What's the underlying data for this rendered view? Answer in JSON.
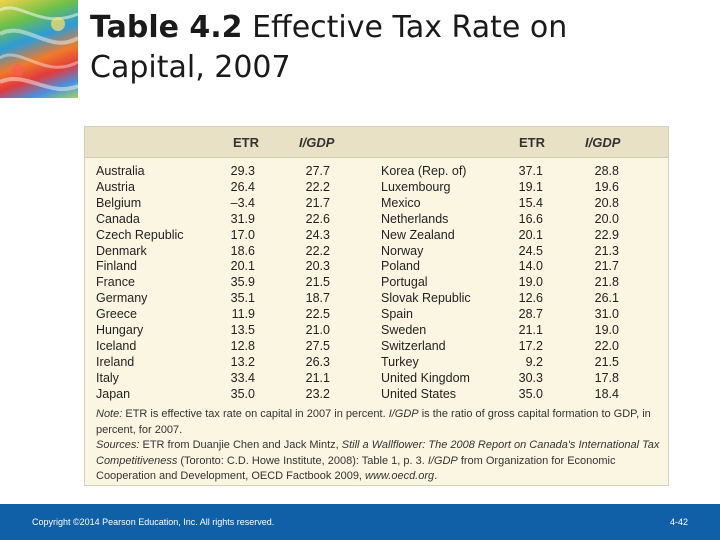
{
  "slide": {
    "title_bold": "Table 4.2",
    "title_rest": " Effective Tax Rate on Capital, 2007"
  },
  "table": {
    "headers": {
      "etr": "ETR",
      "igdp": "I/GDP"
    },
    "left_rows": [
      {
        "country": "Australia",
        "etr": "29.3",
        "igdp": "27.7"
      },
      {
        "country": "Austria",
        "etr": "26.4",
        "igdp": "22.2"
      },
      {
        "country": "Belgium",
        "etr": "–3.4",
        "igdp": "21.7"
      },
      {
        "country": "Canada",
        "etr": "31.9",
        "igdp": "22.6"
      },
      {
        "country": "Czech Republic",
        "etr": "17.0",
        "igdp": "24.3"
      },
      {
        "country": "Denmark",
        "etr": "18.6",
        "igdp": "22.2"
      },
      {
        "country": "Finland",
        "etr": "20.1",
        "igdp": "20.3"
      },
      {
        "country": "France",
        "etr": "35.9",
        "igdp": "21.5"
      },
      {
        "country": "Germany",
        "etr": "35.1",
        "igdp": "18.7"
      },
      {
        "country": "Greece",
        "etr": "11.9",
        "igdp": "22.5"
      },
      {
        "country": "Hungary",
        "etr": "13.5",
        "igdp": "21.0"
      },
      {
        "country": "Iceland",
        "etr": "12.8",
        "igdp": "27.5"
      },
      {
        "country": "Ireland",
        "etr": "13.2",
        "igdp": "26.3"
      },
      {
        "country": "Italy",
        "etr": "33.4",
        "igdp": "21.1"
      },
      {
        "country": "Japan",
        "etr": "35.0",
        "igdp": "23.2"
      }
    ],
    "right_rows": [
      {
        "country": "Korea (Rep. of)",
        "etr": "37.1",
        "igdp": "28.8"
      },
      {
        "country": "Luxembourg",
        "etr": "19.1",
        "igdp": "19.6"
      },
      {
        "country": "Mexico",
        "etr": "15.4",
        "igdp": "20.8"
      },
      {
        "country": "Netherlands",
        "etr": "16.6",
        "igdp": "20.0"
      },
      {
        "country": "New Zealand",
        "etr": "20.1",
        "igdp": "22.9"
      },
      {
        "country": "Norway",
        "etr": "24.5",
        "igdp": "21.3"
      },
      {
        "country": "Poland",
        "etr": "14.0",
        "igdp": "21.7"
      },
      {
        "country": "Portugal",
        "etr": "19.0",
        "igdp": "21.8"
      },
      {
        "country": "Slovak Republic",
        "etr": "12.6",
        "igdp": "26.1"
      },
      {
        "country": "Spain",
        "etr": "28.7",
        "igdp": "31.0"
      },
      {
        "country": "Sweden",
        "etr": "21.1",
        "igdp": "19.0"
      },
      {
        "country": "Switzerland",
        "etr": "17.2",
        "igdp": "22.0"
      },
      {
        "country": "Turkey",
        "etr": "9.2",
        "igdp": "21.5"
      },
      {
        "country": "United Kingdom",
        "etr": "30.3",
        "igdp": "17.8"
      },
      {
        "country": "United States",
        "etr": "35.0",
        "igdp": "18.4"
      }
    ],
    "note": {
      "note_label": "Note:",
      "note_a": " ETR is effective tax rate on capital in 2007 in percent. ",
      "note_igdp": "I/GDP",
      "note_b": " is the ratio of gross capital formation to GDP, in percent, for 2007.",
      "sources_label": "Sources:",
      "sources_a": " ETR from Duanjie Chen and Jack Mintz, ",
      "sources_book": "Still a Wallflower: The 2008 Report on Canada's International Tax Competitiveness",
      "sources_b": " (Toronto: C.D. Howe Institute, 2008): Table 1, p. 3. ",
      "sources_igdp": "I/GDP",
      "sources_c": " from Organization for Economic Cooperation and Development, OECD Factbook 2009, ",
      "sources_url": "www.oecd.org",
      "sources_end": "."
    }
  },
  "footer": {
    "copyright": "Copyright ©2014 Pearson Education, Inc. All rights reserved.",
    "page": "4-42"
  }
}
